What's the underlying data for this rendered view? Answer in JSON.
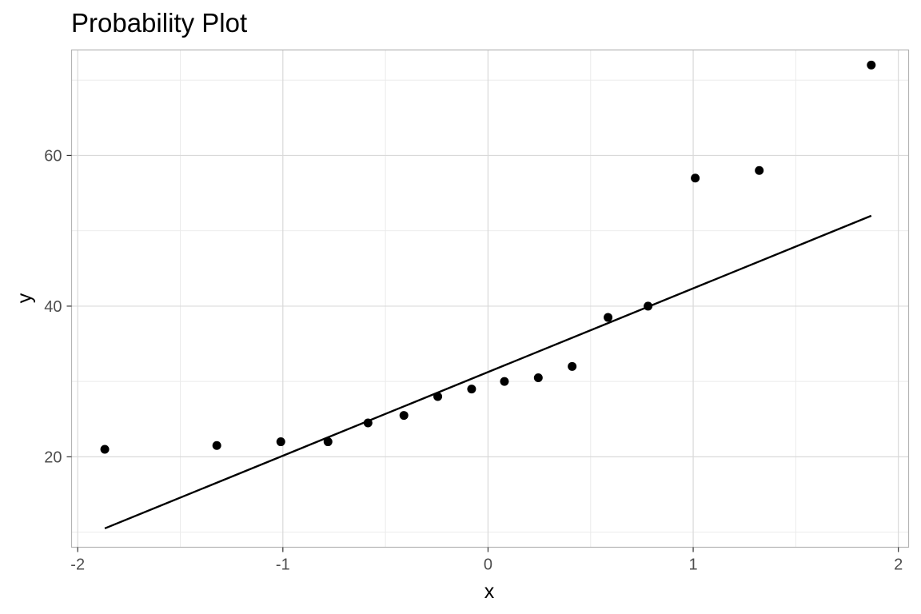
{
  "chart_data": {
    "type": "scatter",
    "title": "Probability Plot",
    "xlabel": "x",
    "ylabel": "y",
    "xlim": [
      -2.03,
      2.05
    ],
    "ylim": [
      8,
      74
    ],
    "x_ticks": [
      -2,
      -1,
      0,
      1,
      2
    ],
    "y_ticks": [
      20,
      40,
      60
    ],
    "x_minor": [
      -1.5,
      -0.5,
      0.5,
      1.5
    ],
    "y_minor": [
      10,
      30,
      50,
      70
    ],
    "grid": true,
    "legend": "none",
    "colors": {
      "points": "#000000",
      "line": "#000000",
      "grid_major": "#d9d9d9",
      "grid_minor": "#ebebeb",
      "panel_border": "#b3b3b3"
    },
    "series": [
      {
        "kind": "points",
        "x": [
          -1.868,
          -1.322,
          -1.01,
          -0.78,
          -0.585,
          -0.41,
          -0.245,
          -0.08,
          0.08,
          0.245,
          0.41,
          0.585,
          0.78,
          1.01,
          1.322,
          1.868
        ],
        "y": [
          21,
          21.5,
          22,
          22,
          24.5,
          25.5,
          28,
          29,
          30,
          30.5,
          32,
          38.5,
          40,
          57,
          58,
          72
        ]
      },
      {
        "kind": "line",
        "x": [
          -1.868,
          1.868
        ],
        "y": [
          10.5,
          52
        ]
      }
    ]
  }
}
